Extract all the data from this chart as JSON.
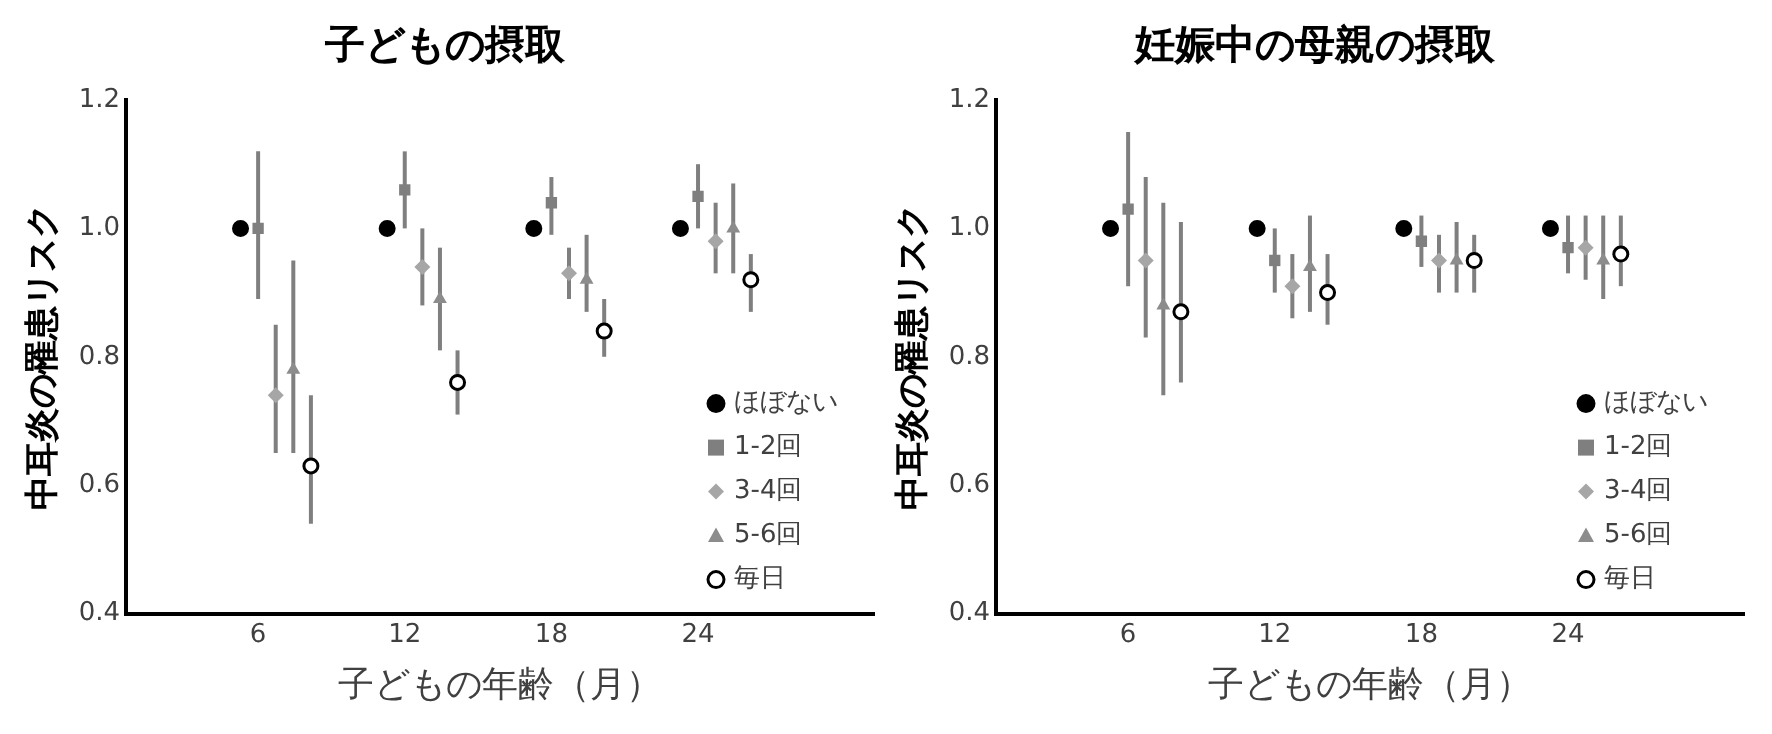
{
  "chart_data": [
    {
      "type": "scatter",
      "title": "子どもの摂取",
      "xlabel": "子どもの年齢（月）",
      "ylabel": "中耳炎の罹患リスク",
      "categories": [
        "6",
        "12",
        "18",
        "24"
      ],
      "ylim": [
        0.4,
        1.2
      ],
      "yticks": [
        {
          "value": 0.4,
          "label": "0.4"
        },
        {
          "value": 0.6,
          "label": "0.6"
        },
        {
          "value": 0.8,
          "label": "0.8"
        },
        {
          "value": 1.0,
          "label": "1.0"
        },
        {
          "value": 1.2,
          "label": "1.2"
        }
      ],
      "grid": false,
      "legend": "bottom right",
      "series": [
        {
          "name": "ほぼない",
          "color": "#000000",
          "marker": "circle",
          "values": [
            1.0,
            1.0,
            1.0,
            1.0
          ]
        },
        {
          "name": "1-2回",
          "color": "#7f7f7f",
          "marker": "square",
          "values": [
            1.0,
            1.06,
            1.04,
            1.05
          ],
          "errors": [
            [
              0.89,
              1.12
            ],
            [
              1.0,
              1.12
            ],
            [
              0.99,
              1.08
            ],
            [
              1.0,
              1.1
            ]
          ]
        },
        {
          "name": "3-4回",
          "color": "#a6a6a6",
          "marker": "diamond",
          "values": [
            0.74,
            0.94,
            0.93,
            0.98
          ],
          "errors": [
            [
              0.65,
              0.85
            ],
            [
              0.88,
              1.0
            ],
            [
              0.89,
              0.97
            ],
            [
              0.93,
              1.04
            ]
          ]
        },
        {
          "name": "5-6回",
          "color": "#8c8c8c",
          "marker": "triangle",
          "values": [
            0.78,
            0.89,
            0.92,
            1.0
          ],
          "errors": [
            [
              0.65,
              0.95
            ],
            [
              0.81,
              0.97
            ],
            [
              0.87,
              0.99
            ],
            [
              0.93,
              1.07
            ]
          ]
        },
        {
          "name": "毎日",
          "color": "#ffffff",
          "marker": "circle",
          "values": [
            0.63,
            0.76,
            0.84,
            0.92
          ],
          "errors": [
            [
              0.54,
              0.74
            ],
            [
              0.71,
              0.81
            ],
            [
              0.8,
              0.89
            ],
            [
              0.87,
              0.96
            ]
          ]
        }
      ]
    },
    {
      "type": "scatter",
      "title": "妊娠中の母親の摂取",
      "xlabel": "子どもの年齢（月）",
      "ylabel": "中耳炎の罹患リスク",
      "categories": [
        "6",
        "12",
        "18",
        "24"
      ],
      "ylim": [
        0.4,
        1.2
      ],
      "yticks": [
        {
          "value": 0.4,
          "label": "0.4"
        },
        {
          "value": 0.6,
          "label": "0.6"
        },
        {
          "value": 0.8,
          "label": "0.8"
        },
        {
          "value": 1.0,
          "label": "1.0"
        },
        {
          "value": 1.2,
          "label": "1.2"
        }
      ],
      "grid": false,
      "legend": "bottom right",
      "series": [
        {
          "name": "ほぼない",
          "color": "#000000",
          "marker": "circle",
          "values": [
            1.0,
            1.0,
            1.0,
            1.0
          ]
        },
        {
          "name": "1-2回",
          "color": "#7f7f7f",
          "marker": "square",
          "values": [
            1.03,
            0.95,
            0.98,
            0.97
          ],
          "errors": [
            [
              0.91,
              1.15
            ],
            [
              0.9,
              1.0
            ],
            [
              0.94,
              1.02
            ],
            [
              0.93,
              1.02
            ]
          ]
        },
        {
          "name": "3-4回",
          "color": "#a6a6a6",
          "marker": "diamond",
          "values": [
            0.95,
            0.91,
            0.95,
            0.97
          ],
          "errors": [
            [
              0.83,
              1.08
            ],
            [
              0.86,
              0.96
            ],
            [
              0.9,
              0.99
            ],
            [
              0.92,
              1.02
            ]
          ]
        },
        {
          "name": "5-6回",
          "color": "#8c8c8c",
          "marker": "triangle",
          "values": [
            0.88,
            0.94,
            0.95,
            0.95
          ],
          "errors": [
            [
              0.74,
              1.04
            ],
            [
              0.87,
              1.02
            ],
            [
              0.9,
              1.01
            ],
            [
              0.89,
              1.02
            ]
          ]
        },
        {
          "name": "毎日",
          "color": "#ffffff",
          "marker": "circle",
          "values": [
            0.87,
            0.9,
            0.95,
            0.96
          ],
          "errors": [
            [
              0.76,
              1.01
            ],
            [
              0.85,
              0.96
            ],
            [
              0.9,
              0.99
            ],
            [
              0.91,
              1.02
            ]
          ]
        }
      ]
    }
  ]
}
